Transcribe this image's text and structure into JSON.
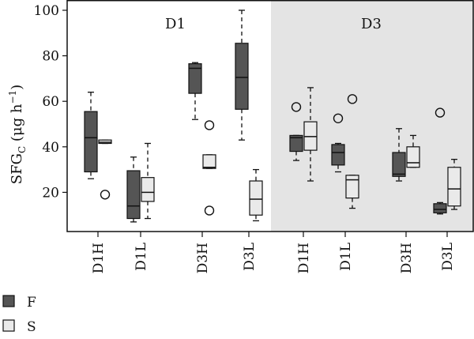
{
  "chart_data": {
    "type": "box",
    "ylabel": {
      "main": "SFG",
      "sub": "C",
      "unit_open": " (μg h",
      "unit_sup": "−1",
      "unit_close": ")"
    },
    "ylim": [
      0,
      100
    ],
    "yticks": [
      20,
      40,
      60,
      80,
      100
    ],
    "panels": [
      {
        "label": "D1",
        "shaded": false,
        "color": "#ffffff"
      },
      {
        "label": "D3",
        "shaded": true,
        "color": "#e4e4e4"
      }
    ],
    "categories": [
      "D1H",
      "D1L",
      "D3H",
      "D3L",
      "D1H",
      "D1L",
      "D3H",
      "D3L"
    ],
    "series": [
      {
        "name": "F",
        "color": "#555555",
        "boxes": [
          {
            "whislo": 26,
            "q1": 29,
            "med": 44,
            "q3": 55.5,
            "whishi": 64,
            "fliers": []
          },
          {
            "whislo": 7,
            "q1": 8.5,
            "med": 14,
            "q3": 29.5,
            "whishi": 35.5,
            "fliers": []
          },
          {
            "whislo": 52,
            "q1": 63.5,
            "med": 74.5,
            "q3": 76.5,
            "whishi": 77,
            "fliers": []
          },
          {
            "whislo": 43,
            "q1": 56.5,
            "med": 70.5,
            "q3": 85.5,
            "whishi": 100,
            "fliers": []
          },
          {
            "whislo": 34,
            "q1": 38,
            "med": 44,
            "q3": 45,
            "whishi": 45,
            "fliers": [
              57.5
            ]
          },
          {
            "whislo": 29,
            "q1": 32,
            "med": 37.5,
            "q3": 41,
            "whishi": 41.5,
            "fliers": [
              52.5
            ]
          },
          {
            "whislo": 25,
            "q1": 27,
            "med": 28,
            "q3": 37.5,
            "whishi": 48,
            "fliers": []
          },
          {
            "whislo": 10.5,
            "q1": 11,
            "med": 12.5,
            "q3": 15,
            "whishi": 15.5,
            "fliers": [
              55
            ]
          }
        ]
      },
      {
        "name": "S",
        "color": "#eaeaea",
        "boxes": [
          {
            "whislo": 41.5,
            "q1": 41.5,
            "med": 42,
            "q3": 43,
            "whishi": 43,
            "fliers": [
              19
            ]
          },
          {
            "whislo": 8.5,
            "q1": 16,
            "med": 20,
            "q3": 26.5,
            "whishi": 41.5,
            "fliers": []
          },
          {
            "whislo": 30.5,
            "q1": 30.5,
            "med": 31,
            "q3": 36.5,
            "whishi": 36.5,
            "fliers": [
              49.5,
              12
            ]
          },
          {
            "whislo": 7.5,
            "q1": 10,
            "med": 17,
            "q3": 25,
            "whishi": 30,
            "fliers": []
          },
          {
            "whislo": 25,
            "q1": 38.5,
            "med": 44.5,
            "q3": 51,
            "whishi": 66,
            "fliers": []
          },
          {
            "whislo": 13,
            "q1": 17.5,
            "med": 25.5,
            "q3": 27.5,
            "whishi": 27.5,
            "fliers": [
              61
            ]
          },
          {
            "whislo": 31,
            "q1": 31,
            "med": 33,
            "q3": 40,
            "whishi": 45,
            "fliers": []
          },
          {
            "whislo": 12.5,
            "q1": 14,
            "med": 21.5,
            "q3": 31,
            "whishi": 34.5,
            "fliers": []
          }
        ]
      }
    ],
    "legend": [
      {
        "label": "F",
        "color": "#555555"
      },
      {
        "label": "S",
        "color": "#eaeaea"
      }
    ]
  }
}
